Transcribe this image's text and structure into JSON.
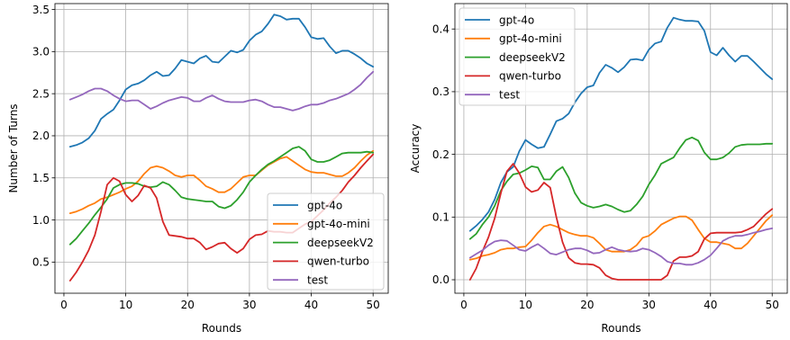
{
  "chart_data": [
    {
      "type": "line",
      "title": "",
      "xlabel": "Rounds",
      "ylabel": "Number of Turns",
      "xlim": [
        -1.45,
        52.45
      ],
      "ylim": [
        0.13,
        3.57
      ],
      "xticks": [
        0,
        10,
        20,
        30,
        40,
        50
      ],
      "yticks": [
        0.5,
        1.0,
        1.5,
        2.0,
        2.5,
        3.0,
        3.5
      ],
      "ytick_format": 1,
      "grid": true,
      "legend_position": "lower-right",
      "x": [
        1,
        2,
        3,
        4,
        5,
        6,
        7,
        8,
        9,
        10,
        11,
        12,
        13,
        14,
        15,
        16,
        17,
        18,
        19,
        20,
        21,
        22,
        23,
        24,
        25,
        26,
        27,
        28,
        29,
        30,
        31,
        32,
        33,
        34,
        35,
        36,
        37,
        38,
        39,
        40,
        41,
        42,
        43,
        44,
        45,
        46,
        47,
        48,
        49,
        50
      ],
      "series": [
        {
          "name": "gpt-4o",
          "color": "#1f77b4",
          "values": [
            1.87,
            1.89,
            1.92,
            1.97,
            2.06,
            2.2,
            2.26,
            2.31,
            2.42,
            2.55,
            2.6,
            2.62,
            2.66,
            2.72,
            2.76,
            2.71,
            2.72,
            2.8,
            2.9,
            2.88,
            2.86,
            2.92,
            2.95,
            2.88,
            2.87,
            2.94,
            3.01,
            2.99,
            3.02,
            3.13,
            3.2,
            3.24,
            3.33,
            3.44,
            3.42,
            3.38,
            3.39,
            3.39,
            3.29,
            3.17,
            3.15,
            3.16,
            3.06,
            2.98,
            3.01,
            3.01,
            2.97,
            2.92,
            2.86,
            2.82
          ]
        },
        {
          "name": "gpt-4o-mini",
          "color": "#ff7f0e",
          "values": [
            1.08,
            1.1,
            1.13,
            1.17,
            1.2,
            1.25,
            1.27,
            1.3,
            1.33,
            1.37,
            1.4,
            1.46,
            1.55,
            1.62,
            1.64,
            1.62,
            1.58,
            1.53,
            1.51,
            1.53,
            1.53,
            1.47,
            1.4,
            1.37,
            1.33,
            1.33,
            1.37,
            1.44,
            1.51,
            1.53,
            1.53,
            1.59,
            1.65,
            1.69,
            1.73,
            1.75,
            1.7,
            1.65,
            1.6,
            1.57,
            1.56,
            1.56,
            1.54,
            1.52,
            1.52,
            1.56,
            1.62,
            1.7,
            1.77,
            1.82
          ]
        },
        {
          "name": "deepseekV2",
          "color": "#2ca02c",
          "values": [
            0.71,
            0.78,
            0.87,
            0.96,
            1.06,
            1.15,
            1.25,
            1.38,
            1.42,
            1.44,
            1.44,
            1.43,
            1.4,
            1.39,
            1.4,
            1.45,
            1.42,
            1.35,
            1.27,
            1.25,
            1.24,
            1.23,
            1.22,
            1.22,
            1.16,
            1.14,
            1.17,
            1.24,
            1.33,
            1.45,
            1.53,
            1.6,
            1.66,
            1.7,
            1.75,
            1.8,
            1.85,
            1.87,
            1.82,
            1.72,
            1.69,
            1.69,
            1.71,
            1.75,
            1.79,
            1.8,
            1.8,
            1.8,
            1.81,
            1.8
          ]
        },
        {
          "name": "qwen-turbo",
          "color": "#d62728",
          "values": [
            0.28,
            0.38,
            0.5,
            0.64,
            0.82,
            1.1,
            1.42,
            1.5,
            1.46,
            1.3,
            1.22,
            1.29,
            1.41,
            1.38,
            1.26,
            0.98,
            0.82,
            0.81,
            0.8,
            0.78,
            0.78,
            0.73,
            0.65,
            0.68,
            0.72,
            0.73,
            0.66,
            0.61,
            0.66,
            0.77,
            0.82,
            0.83,
            0.87,
            0.86,
            0.86,
            0.85,
            0.85,
            0.9,
            0.95,
            0.98,
            1.05,
            1.12,
            1.2,
            1.27,
            1.35,
            1.45,
            1.53,
            1.62,
            1.7,
            1.78
          ]
        },
        {
          "name": "test",
          "color": "#9467bd",
          "values": [
            2.43,
            2.46,
            2.49,
            2.53,
            2.56,
            2.56,
            2.53,
            2.48,
            2.44,
            2.41,
            2.42,
            2.42,
            2.37,
            2.32,
            2.35,
            2.39,
            2.42,
            2.44,
            2.46,
            2.45,
            2.41,
            2.41,
            2.45,
            2.48,
            2.44,
            2.41,
            2.4,
            2.4,
            2.4,
            2.42,
            2.43,
            2.41,
            2.37,
            2.34,
            2.34,
            2.32,
            2.3,
            2.32,
            2.35,
            2.37,
            2.37,
            2.39,
            2.42,
            2.44,
            2.47,
            2.5,
            2.55,
            2.61,
            2.69,
            2.76
          ]
        }
      ]
    },
    {
      "type": "line",
      "title": "",
      "xlabel": "Rounds",
      "ylabel": "Accuracy",
      "xlim": [
        -1.45,
        52.45
      ],
      "ylim": [
        -0.0215,
        0.4405
      ],
      "xticks": [
        0,
        10,
        20,
        30,
        40,
        50
      ],
      "yticks": [
        0.0,
        0.1,
        0.2,
        0.3,
        0.4
      ],
      "ytick_format": 1,
      "grid": true,
      "legend_position": "upper-left",
      "x": [
        1,
        2,
        3,
        4,
        5,
        6,
        7,
        8,
        9,
        10,
        11,
        12,
        13,
        14,
        15,
        16,
        17,
        18,
        19,
        20,
        21,
        22,
        23,
        24,
        25,
        26,
        27,
        28,
        29,
        30,
        31,
        32,
        33,
        34,
        35,
        36,
        37,
        38,
        39,
        40,
        41,
        42,
        43,
        44,
        45,
        46,
        47,
        48,
        49,
        50
      ],
      "series": [
        {
          "name": "gpt-4o",
          "color": "#1f77b4",
          "values": [
            0.078,
            0.086,
            0.096,
            0.108,
            0.128,
            0.155,
            0.172,
            0.18,
            0.205,
            0.223,
            0.216,
            0.21,
            0.212,
            0.232,
            0.253,
            0.257,
            0.265,
            0.283,
            0.297,
            0.307,
            0.31,
            0.33,
            0.343,
            0.338,
            0.331,
            0.339,
            0.351,
            0.352,
            0.35,
            0.367,
            0.377,
            0.38,
            0.402,
            0.418,
            0.415,
            0.413,
            0.413,
            0.412,
            0.397,
            0.363,
            0.358,
            0.37,
            0.358,
            0.348,
            0.357,
            0.357,
            0.348,
            0.338,
            0.328,
            0.32
          ]
        },
        {
          "name": "gpt-4o-mini",
          "color": "#ff7f0e",
          "values": [
            0.032,
            0.034,
            0.038,
            0.04,
            0.043,
            0.048,
            0.05,
            0.05,
            0.052,
            0.053,
            0.063,
            0.075,
            0.085,
            0.088,
            0.085,
            0.08,
            0.075,
            0.072,
            0.07,
            0.07,
            0.067,
            0.058,
            0.048,
            0.045,
            0.045,
            0.045,
            0.048,
            0.055,
            0.067,
            0.07,
            0.078,
            0.088,
            0.093,
            0.098,
            0.101,
            0.101,
            0.095,
            0.08,
            0.066,
            0.06,
            0.06,
            0.058,
            0.056,
            0.05,
            0.05,
            0.058,
            0.07,
            0.082,
            0.094,
            0.103
          ]
        },
        {
          "name": "deepseekV2",
          "color": "#2ca02c",
          "values": [
            0.065,
            0.073,
            0.088,
            0.1,
            0.118,
            0.142,
            0.157,
            0.168,
            0.17,
            0.175,
            0.181,
            0.179,
            0.16,
            0.16,
            0.173,
            0.18,
            0.163,
            0.138,
            0.123,
            0.118,
            0.115,
            0.117,
            0.12,
            0.117,
            0.112,
            0.108,
            0.11,
            0.12,
            0.133,
            0.152,
            0.167,
            0.185,
            0.19,
            0.195,
            0.21,
            0.223,
            0.227,
            0.222,
            0.203,
            0.192,
            0.192,
            0.195,
            0.202,
            0.212,
            0.215,
            0.216,
            0.216,
            0.216,
            0.217,
            0.217
          ]
        },
        {
          "name": "qwen-turbo",
          "color": "#d62728",
          "values": [
            0.0,
            0.018,
            0.045,
            0.068,
            0.098,
            0.138,
            0.173,
            0.185,
            0.17,
            0.148,
            0.14,
            0.143,
            0.155,
            0.147,
            0.1,
            0.06,
            0.035,
            0.027,
            0.025,
            0.025,
            0.024,
            0.019,
            0.007,
            0.002,
            0.0,
            0.0,
            0.0,
            0.0,
            0.0,
            0.0,
            0.0,
            0.0,
            0.007,
            0.03,
            0.036,
            0.036,
            0.038,
            0.045,
            0.065,
            0.074,
            0.075,
            0.075,
            0.075,
            0.075,
            0.076,
            0.08,
            0.085,
            0.095,
            0.105,
            0.113
          ]
        },
        {
          "name": "test",
          "color": "#9467bd",
          "values": [
            0.035,
            0.041,
            0.047,
            0.055,
            0.061,
            0.063,
            0.062,
            0.055,
            0.048,
            0.046,
            0.052,
            0.057,
            0.05,
            0.042,
            0.04,
            0.044,
            0.048,
            0.05,
            0.05,
            0.047,
            0.042,
            0.043,
            0.048,
            0.052,
            0.048,
            0.046,
            0.045,
            0.046,
            0.05,
            0.048,
            0.043,
            0.037,
            0.029,
            0.026,
            0.026,
            0.024,
            0.024,
            0.027,
            0.032,
            0.039,
            0.05,
            0.062,
            0.067,
            0.07,
            0.07,
            0.072,
            0.075,
            0.077,
            0.08,
            0.082
          ]
        }
      ]
    }
  ]
}
